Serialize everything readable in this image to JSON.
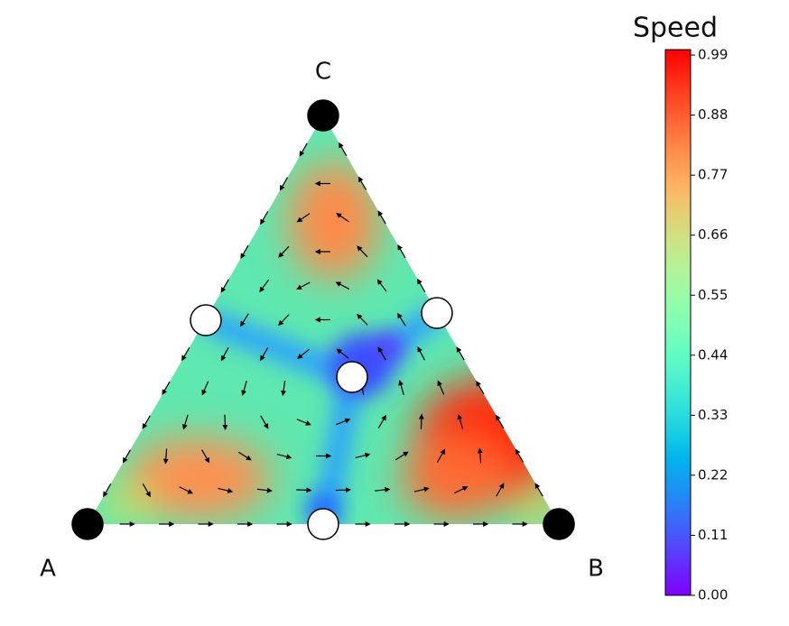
{
  "chart_data": {
    "type": "ternary",
    "vertex_labels": [
      "A",
      "B",
      "C"
    ],
    "colorbar": {
      "title": "Speed",
      "colormap": "rainbow",
      "clim": [
        0,
        1.0
      ],
      "ticks": [
        {
          "value": 0,
          "label": "0.00"
        },
        0.11,
        0.22,
        0.33,
        0.44,
        0.55,
        0.66,
        0.77,
        0.88,
        0.99
      ]
    }
  }
}
